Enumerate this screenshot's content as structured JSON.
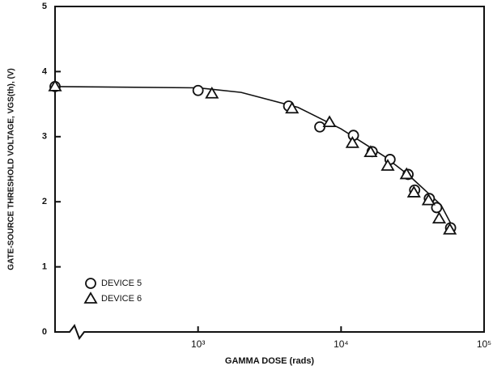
{
  "chart_data": {
    "type": "scatter",
    "xlabel": "GAMMA DOSE (rads)",
    "ylabel": "GATE-SOURCE THRESHOLD VOLTAGE, VGS(th), (V)",
    "xscale": "log",
    "xlim": [
      100,
      100000
    ],
    "ylim": [
      0,
      5
    ],
    "xticks": [
      {
        "value": 1000,
        "label": "10³"
      },
      {
        "value": 10000,
        "label": "10⁴"
      },
      {
        "value": 100000,
        "label": "10⁵"
      }
    ],
    "yticks": [
      0,
      1,
      2,
      3,
      4,
      5
    ],
    "legend": "lower left",
    "series": [
      {
        "name": "DEVICE 5",
        "marker": "circle",
        "color": "#111111",
        "x": [
          100,
          1000,
          4300,
          7100,
          12200,
          16500,
          22000,
          29400,
          32700,
          41400,
          46600,
          58300
        ],
        "values": [
          3.77,
          3.71,
          3.47,
          3.15,
          3.02,
          2.77,
          2.65,
          2.42,
          2.18,
          2.05,
          1.91,
          1.6
        ]
      },
      {
        "name": "DEVICE 6",
        "marker": "triangle",
        "color": "#111111",
        "x": [
          100,
          1250,
          4540,
          8300,
          12000,
          16100,
          21200,
          28700,
          32300,
          40900,
          48500,
          57600
        ],
        "values": [
          3.77,
          3.66,
          3.43,
          3.22,
          2.9,
          2.76,
          2.55,
          2.42,
          2.14,
          2.02,
          1.74,
          1.57
        ]
      }
    ],
    "curve": {
      "color": "#111111",
      "x": [
        100,
        1000,
        2000,
        5000,
        10000,
        20000,
        30000,
        50000,
        60000
      ],
      "values": [
        3.77,
        3.75,
        3.68,
        3.45,
        3.12,
        2.7,
        2.4,
        1.95,
        1.62
      ]
    }
  }
}
